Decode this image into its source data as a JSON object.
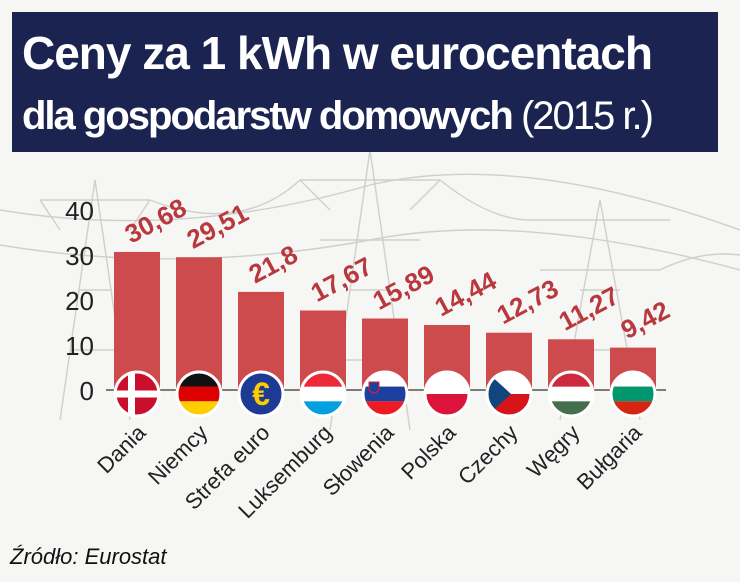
{
  "header": {
    "title_line1": "Ceny za 1 kWh w eurocentach",
    "title_line2_main": "dla gospodarstw domowych",
    "title_line2_year": "(2015 r.)"
  },
  "source": "Źródło: Eurostat",
  "colors": {
    "bar": "#cd4b4d",
    "value_label": "#b8383d",
    "title_bg": "#1b2451",
    "axis_text": "#222222"
  },
  "chart_data": {
    "type": "bar",
    "title": "Ceny za 1 kWh w eurocentach dla gospodarstw domowych (2015 r.)",
    "categories": [
      "Dania",
      "Niemcy",
      "Strefa euro",
      "Luksemburg",
      "Słowenia",
      "Polska",
      "Czechy",
      "Węgry",
      "Bułgaria"
    ],
    "values": [
      30.68,
      29.51,
      21.8,
      17.67,
      15.89,
      14.44,
      12.73,
      11.27,
      9.42
    ],
    "value_labels": [
      "30,68",
      "29,51",
      "21,8",
      "17,67",
      "15,89",
      "14,44",
      "12,73",
      "11,27",
      "9,42"
    ],
    "yticks": [
      "0",
      "10",
      "20",
      "30",
      "40"
    ],
    "ylim": [
      0,
      40
    ],
    "xlabel": "",
    "ylabel": "",
    "grid": false,
    "flags": [
      "dk-flag-icon",
      "de-flag-icon",
      "eu-euro-icon",
      "lu-flag-icon",
      "si-flag-icon",
      "pl-flag-icon",
      "cz-flag-icon",
      "hu-flag-icon",
      "bg-flag-icon"
    ]
  }
}
